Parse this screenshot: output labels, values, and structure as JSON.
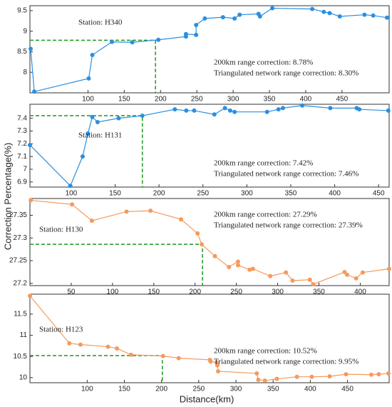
{
  "xlabel": "Distance(km)",
  "ylabel": "Correction Percentage(%)",
  "chart_data": [
    {
      "type": "line",
      "station": "Station: H340",
      "notes": [
        "200km range correction:  8.78%",
        "Triangulated network range correction: 8.30%"
      ],
      "reference": {
        "x": 193,
        "y": 8.78
      },
      "x": [
        21,
        26,
        101,
        106,
        133,
        161,
        197,
        235,
        235,
        249,
        249,
        261,
        286,
        302,
        309,
        335,
        337,
        354,
        409,
        425,
        433,
        447,
        481,
        493,
        512
      ],
      "series": [
        {
          "color": "#2a8fe2",
          "values": [
            8.57,
            7.53,
            7.85,
            8.42,
            8.74,
            8.73,
            8.79,
            8.87,
            8.93,
            8.91,
            9.15,
            9.31,
            9.34,
            9.31,
            9.4,
            9.42,
            9.36,
            9.56,
            9.54,
            9.47,
            9.44,
            9.36,
            9.4,
            9.38,
            9.33
          ]
        }
      ],
      "xlim": [
        20,
        515
      ],
      "xticks": [
        100,
        150,
        200,
        250,
        300,
        350,
        400,
        450
      ],
      "ylim": [
        7.5,
        9.62
      ],
      "yticks": [
        8,
        8.5,
        9,
        9.5
      ]
    },
    {
      "type": "line",
      "station": "Station: H131",
      "notes": [
        "200km range correction:  7.42%",
        "Triangulated network range correction: 7.46%"
      ],
      "reference": {
        "x": 181,
        "y": 7.42
      },
      "x": [
        53,
        99,
        113,
        119,
        124,
        130,
        154,
        181,
        218,
        231,
        240,
        263,
        275,
        281,
        286,
        323,
        336,
        341,
        363,
        395,
        425,
        428,
        461
      ],
      "series": [
        {
          "color": "#2a8fe2",
          "values": [
            7.19,
            6.87,
            7.1,
            7.28,
            7.41,
            7.37,
            7.4,
            7.42,
            7.47,
            7.46,
            7.46,
            7.43,
            7.48,
            7.46,
            7.45,
            7.45,
            7.47,
            7.48,
            7.5,
            7.48,
            7.48,
            7.47,
            7.46
          ]
        }
      ],
      "xlim": [
        53,
        462
      ],
      "xticks": [
        100,
        150,
        200,
        250,
        300,
        350,
        400,
        450
      ],
      "ylim": [
        6.86,
        7.51
      ],
      "yticks": [
        6.9,
        7,
        7.1,
        7.2,
        7.3,
        7.4
      ]
    },
    {
      "type": "line",
      "station": "Station: H130",
      "notes": [
        "200km range correction:  27.29%",
        "Triangulated network range correction: 27.39%"
      ],
      "reference": {
        "x": 209,
        "y": 27.286
      },
      "x": [
        1,
        51,
        75,
        117,
        146,
        183,
        203,
        208,
        224,
        241,
        252,
        252,
        266,
        270,
        291,
        310,
        318,
        339,
        343,
        381,
        384,
        395,
        403,
        435
      ],
      "series": [
        {
          "color": "#f59a5e",
          "values": [
            27.383,
            27.374,
            27.338,
            27.358,
            27.36,
            27.341,
            27.31,
            27.286,
            27.26,
            27.236,
            27.248,
            27.24,
            27.23,
            27.232,
            27.216,
            27.224,
            27.206,
            27.208,
            27.198,
            27.225,
            27.219,
            27.211,
            27.224,
            27.232
          ]
        }
      ],
      "xlim": [
        0,
        435
      ],
      "xticks": [
        50,
        100,
        150,
        200,
        250,
        300,
        350,
        400
      ],
      "ylim": [
        27.195,
        27.387
      ],
      "yticks": [
        27.2,
        27.25,
        27.3,
        27.35
      ]
    },
    {
      "type": "line",
      "station": "Station: H123",
      "notes": [
        "200km range correction:  10.52%",
        "Triangulated network range correction: 9.95%"
      ],
      "reference": {
        "x": 201,
        "y": 10.52
      },
      "x": [
        23,
        76,
        91,
        128,
        140,
        159,
        202,
        223,
        265,
        266,
        274,
        275,
        276,
        328,
        330,
        339,
        355,
        382,
        402,
        426,
        448,
        482,
        492,
        505
      ],
      "series": [
        {
          "color": "#f59a5e",
          "values": [
            11.93,
            10.81,
            10.78,
            10.73,
            10.69,
            10.54,
            10.51,
            10.46,
            10.42,
            10.38,
            10.36,
            10.29,
            10.15,
            10.1,
            9.95,
            9.93,
            9.97,
            10.02,
            10.02,
            10.03,
            10.08,
            10.07,
            10.08,
            10.1
          ]
        }
      ],
      "xlim": [
        23,
        506
      ],
      "xticks": [
        100,
        150,
        200,
        250,
        300,
        350,
        400,
        450
      ],
      "ylim": [
        9.88,
        11.97
      ],
      "yticks": [
        10,
        10.5,
        11,
        11.5
      ]
    }
  ]
}
